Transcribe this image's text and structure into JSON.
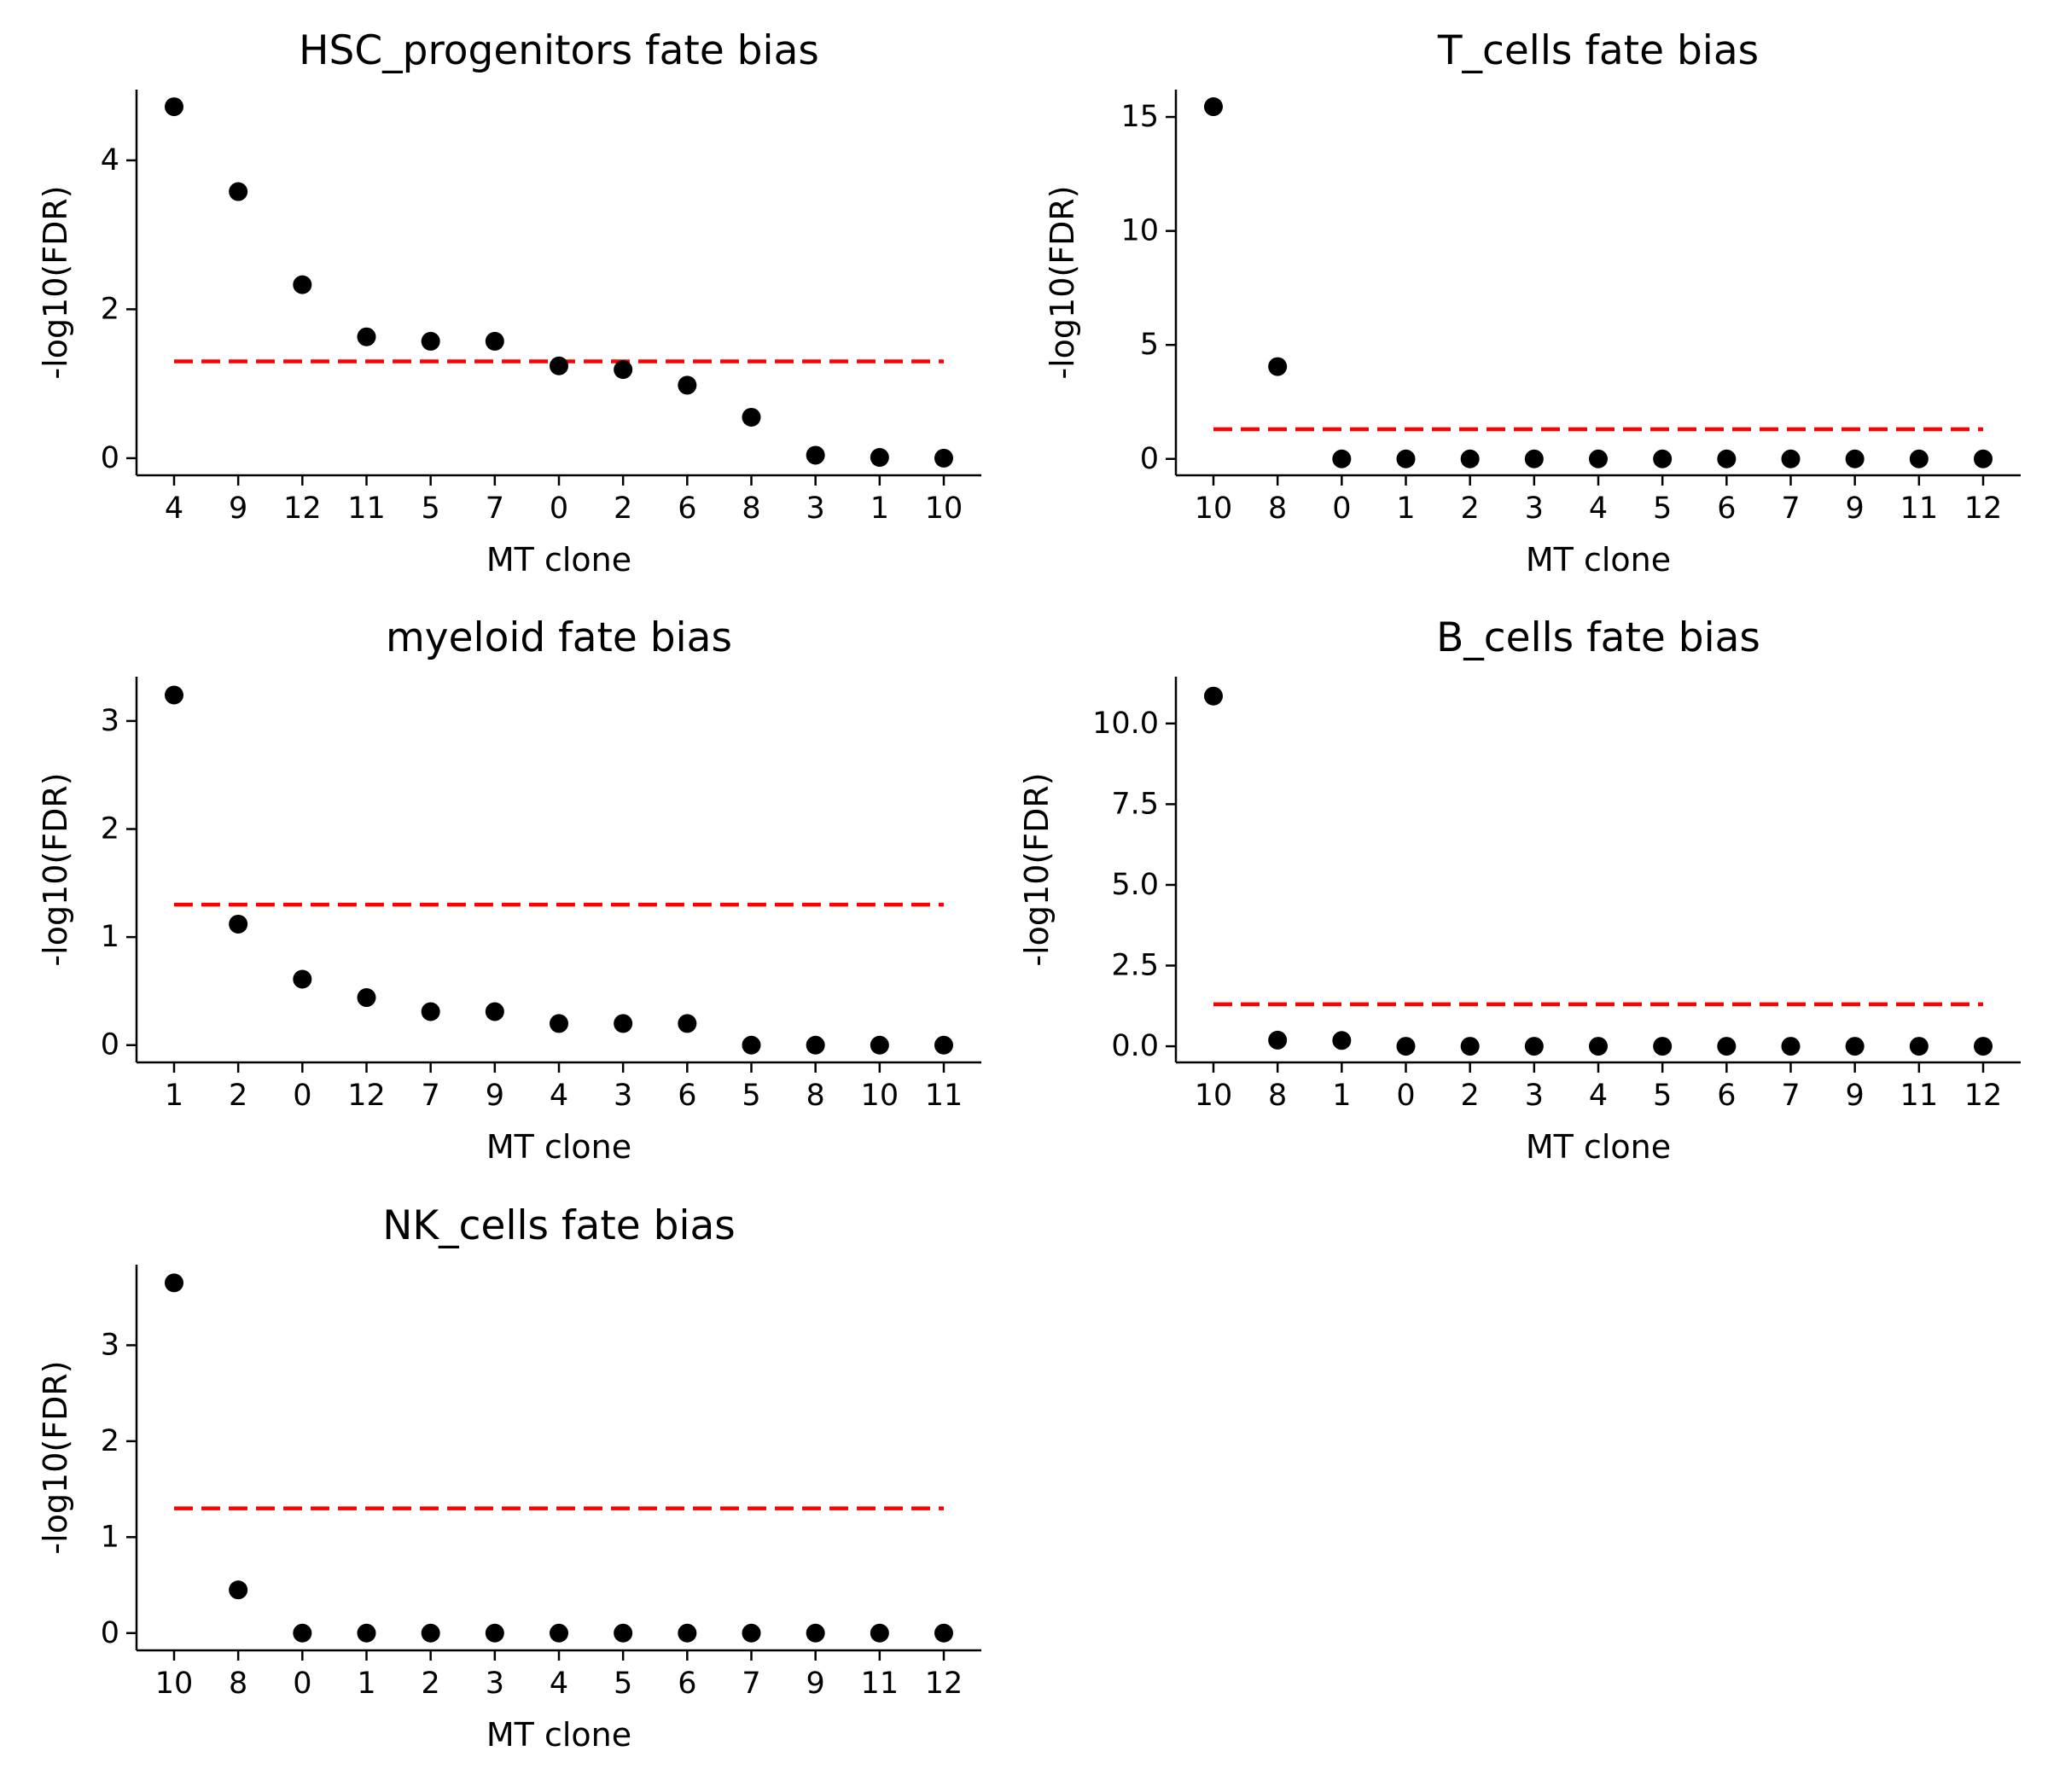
{
  "chart_data": [
    {
      "type": "scatter",
      "title": "HSC_progenitors fate bias",
      "xlabel": "MT clone",
      "ylabel": "-log10(FDR)",
      "categories": [
        "4",
        "9",
        "12",
        "11",
        "5",
        "7",
        "0",
        "2",
        "6",
        "8",
        "3",
        "1",
        "10"
      ],
      "values": [
        4.72,
        3.58,
        2.33,
        1.63,
        1.57,
        1.57,
        1.24,
        1.19,
        0.98,
        0.55,
        0.04,
        0.01,
        0.0
      ],
      "threshold": 1.3,
      "ylim": [
        -0.23,
        4.95
      ],
      "yticks": [
        0,
        2,
        4
      ],
      "ytick_labels": [
        "0",
        "2",
        "4"
      ]
    },
    {
      "type": "scatter",
      "title": "T_cells fate bias",
      "xlabel": "MT clone",
      "ylabel": "-log10(FDR)",
      "categories": [
        "10",
        "8",
        "0",
        "1",
        "2",
        "3",
        "4",
        "5",
        "6",
        "7",
        "9",
        "11",
        "12"
      ],
      "values": [
        15.45,
        4.05,
        0.0,
        0.0,
        0.0,
        0.0,
        0.0,
        0.0,
        0.0,
        0.0,
        0.0,
        0.0,
        0.0
      ],
      "threshold": 1.3,
      "ylim": [
        -0.72,
        16.2
      ],
      "yticks": [
        0,
        5,
        10,
        15
      ],
      "ytick_labels": [
        "0",
        "5",
        "10",
        "15"
      ]
    },
    {
      "type": "scatter",
      "title": "myeloid fate bias",
      "xlabel": "MT clone",
      "ylabel": "-log10(FDR)",
      "categories": [
        "1",
        "2",
        "0",
        "12",
        "7",
        "9",
        "4",
        "3",
        "6",
        "5",
        "8",
        "10",
        "11"
      ],
      "values": [
        3.24,
        1.12,
        0.61,
        0.44,
        0.31,
        0.31,
        0.2,
        0.2,
        0.2,
        0.0,
        0.0,
        0.0,
        0.0
      ],
      "threshold": 1.3,
      "ylim": [
        -0.16,
        3.41
      ],
      "yticks": [
        0,
        1,
        2,
        3
      ],
      "ytick_labels": [
        "0",
        "1",
        "2",
        "3"
      ]
    },
    {
      "type": "scatter",
      "title": "B_cells fate bias",
      "xlabel": "MT clone",
      "ylabel": "-log10(FDR)",
      "categories": [
        "10",
        "8",
        "1",
        "0",
        "2",
        "3",
        "4",
        "5",
        "6",
        "7",
        "9",
        "11",
        "12"
      ],
      "values": [
        10.85,
        0.19,
        0.18,
        0.0,
        0.0,
        0.0,
        0.0,
        0.0,
        0.0,
        0.0,
        0.0,
        0.0,
        0.0
      ],
      "threshold": 1.3,
      "ylim": [
        -0.5,
        11.45
      ],
      "yticks": [
        0,
        2.5,
        5,
        7.5,
        10
      ],
      "ytick_labels": [
        "0.0",
        "2.5",
        "5.0",
        "7.5",
        "10.0"
      ]
    },
    {
      "type": "scatter",
      "title": "NK_cells fate bias",
      "xlabel": "MT clone",
      "ylabel": "-log10(FDR)",
      "categories": [
        "10",
        "8",
        "0",
        "1",
        "2",
        "3",
        "4",
        "5",
        "6",
        "7",
        "9",
        "11",
        "12"
      ],
      "values": [
        3.65,
        0.45,
        0.0,
        0.0,
        0.0,
        0.0,
        0.0,
        0.0,
        0.0,
        0.0,
        0.0,
        0.0,
        0.0
      ],
      "threshold": 1.3,
      "ylim": [
        -0.18,
        3.84
      ],
      "yticks": [
        0,
        1,
        2,
        3
      ],
      "ytick_labels": [
        "0",
        "1",
        "2",
        "3"
      ]
    }
  ],
  "colors": {
    "points": "#000000",
    "threshold_line": "#ff0000",
    "axes": "#000000"
  }
}
